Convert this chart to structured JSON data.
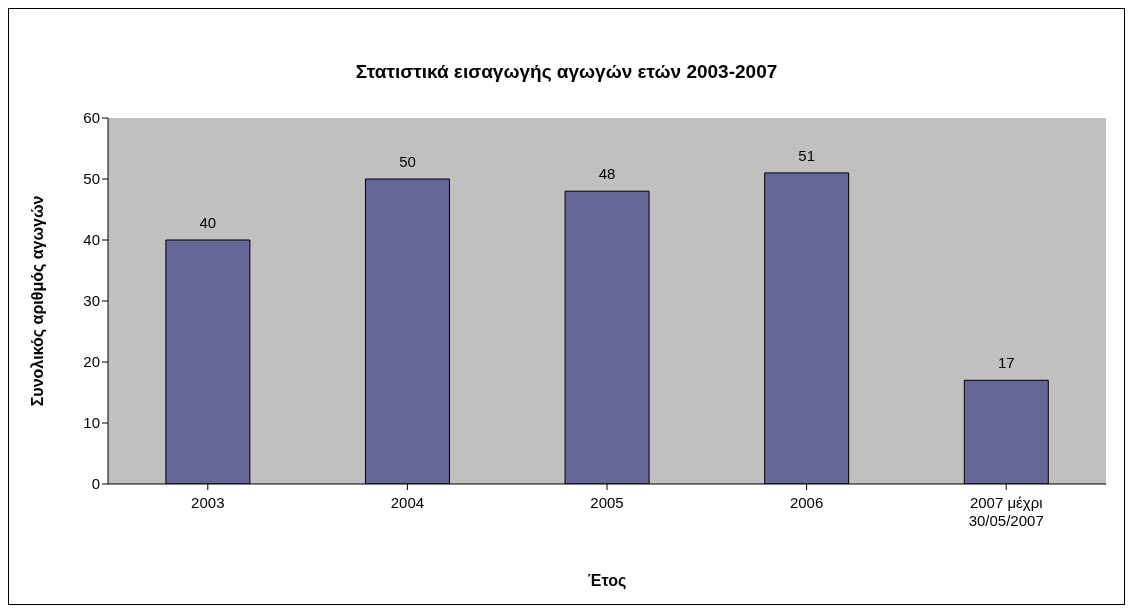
{
  "chart_data": {
    "type": "bar",
    "title": "Στατιστικά εισαγωγής αγωγών ετών 2003-2007",
    "xlabel": "Έτος",
    "ylabel": "Συνολικός αριθμός αγωγών",
    "categories": [
      "2003",
      "2004",
      "2005",
      "2006",
      "2007 μέχρι 30/05/2007"
    ],
    "values": [
      40,
      50,
      48,
      51,
      17
    ],
    "color": "#666699",
    "ylim": [
      0,
      60
    ],
    "yticks": [
      0,
      10,
      20,
      30,
      40,
      50,
      60
    ],
    "grid": false,
    "data_labels": true
  }
}
